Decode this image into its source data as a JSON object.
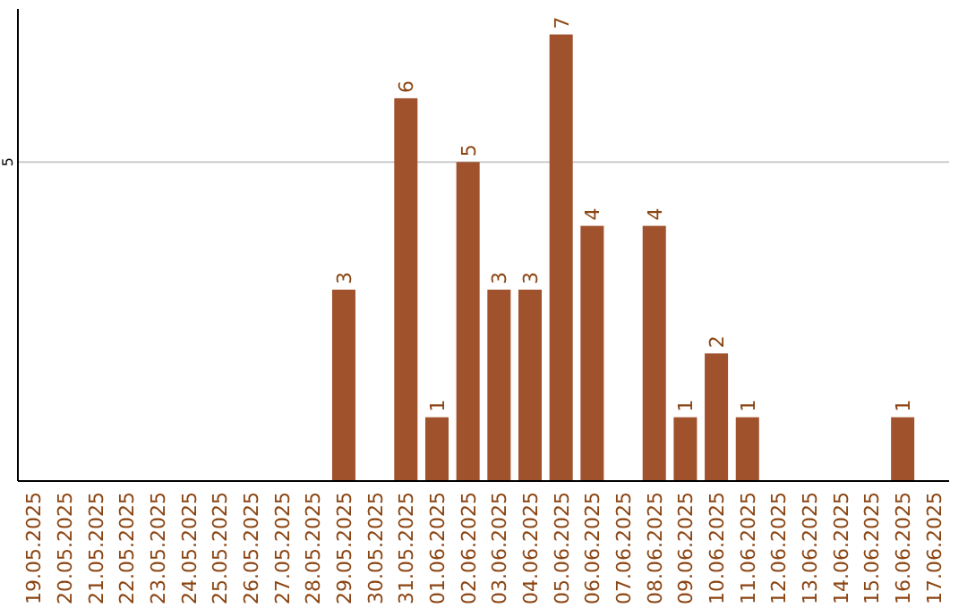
{
  "chart_data": {
    "type": "bar",
    "categories": [
      "19.05.2025",
      "20.05.2025",
      "21.05.2025",
      "22.05.2025",
      "23.05.2025",
      "24.05.2025",
      "25.05.2025",
      "26.05.2025",
      "27.05.2025",
      "28.05.2025",
      "29.05.2025",
      "30.05.2025",
      "31.05.2025",
      "01.06.2025",
      "02.06.2025",
      "03.06.2025",
      "04.06.2025",
      "05.06.2025",
      "06.06.2025",
      "07.06.2025",
      "08.06.2025",
      "09.06.2025",
      "10.06.2025",
      "11.06.2025",
      "12.06.2025",
      "13.06.2025",
      "14.06.2025",
      "15.06.2025",
      "16.06.2025",
      "17.06.2025"
    ],
    "values": [
      null,
      null,
      null,
      null,
      null,
      null,
      null,
      null,
      null,
      null,
      3,
      null,
      6,
      1,
      5,
      3,
      3,
      7,
      4,
      null,
      4,
      1,
      2,
      1,
      null,
      null,
      null,
      null,
      1,
      null
    ],
    "color": "#a0522d",
    "ylim": [
      0,
      7.4
    ],
    "yticks": [
      5
    ],
    "grid": "y",
    "data_labels": true
  }
}
